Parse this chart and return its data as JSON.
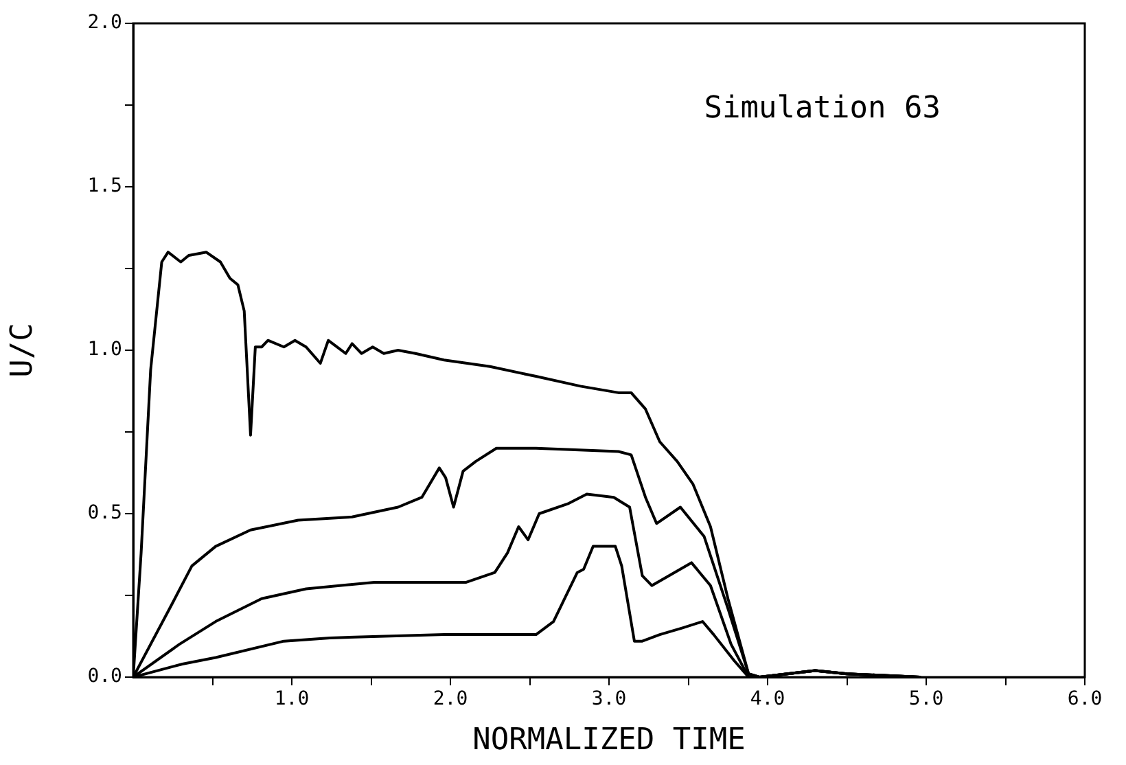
{
  "chart_data": {
    "type": "line",
    "xlabel": "NORMALIZED TIME",
    "ylabel": "U/C",
    "annotations": [
      "Simulation 63"
    ],
    "xlim": [
      0,
      6
    ],
    "ylim": [
      0,
      2
    ],
    "xticks": [
      {
        "value": 0.5,
        "label": null
      },
      {
        "value": 1,
        "label": "1.0"
      },
      {
        "value": 1.5,
        "label": null
      },
      {
        "value": 2,
        "label": "2.0"
      },
      {
        "value": 2.5,
        "label": null
      },
      {
        "value": 3,
        "label": "3.0"
      },
      {
        "value": 3.5,
        "label": null
      },
      {
        "value": 4,
        "label": "4.0"
      },
      {
        "value": 4.5,
        "label": null
      },
      {
        "value": 5,
        "label": "5.0"
      },
      {
        "value": 5.5,
        "label": null
      },
      {
        "value": 6,
        "label": "6.0"
      }
    ],
    "yticks": [
      {
        "value": 0,
        "label": "0.0"
      },
      {
        "value": 0.25,
        "label": null
      },
      {
        "value": 0.5,
        "label": "0.5"
      },
      {
        "value": 0.75,
        "label": null
      },
      {
        "value": 1,
        "label": "1.0"
      },
      {
        "value": 1.25,
        "label": null
      },
      {
        "value": 1.5,
        "label": "1.5"
      },
      {
        "value": 1.75,
        "label": null
      },
      {
        "value": 2,
        "label": "2.0"
      }
    ],
    "grid": false,
    "legend": false,
    "marker": "none",
    "line_style": "solid",
    "series": [
      {
        "color": "#000000",
        "x": [
          0,
          0.05,
          0.11,
          0.18,
          0.22,
          0.3,
          0.35,
          0.46,
          0.55,
          0.61,
          0.66,
          0.7,
          0.74,
          0.77,
          0.81,
          0.85,
          0.95,
          1.02,
          1.09,
          1.18,
          1.23,
          1.34,
          1.38,
          1.44,
          1.51,
          1.58,
          1.67,
          1.78,
          1.96,
          2.25,
          2.54,
          2.82,
          3.06,
          3.14,
          3.23,
          3.32,
          3.43,
          3.53,
          3.64,
          3.75,
          3.88,
          3.95,
          4.3,
          4.5,
          4.96
        ],
        "values": [
          0,
          0.38,
          0.94,
          1.27,
          1.3,
          1.27,
          1.29,
          1.3,
          1.27,
          1.22,
          1.2,
          1.12,
          0.74,
          1.01,
          1.01,
          1.03,
          1.01,
          1.03,
          1.01,
          0.96,
          1.03,
          0.99,
          1.02,
          0.99,
          1.01,
          0.99,
          1.0,
          0.99,
          0.97,
          0.95,
          0.92,
          0.89,
          0.87,
          0.87,
          0.82,
          0.72,
          0.66,
          0.59,
          0.46,
          0.24,
          0.01,
          0,
          0.02,
          0.01,
          0
        ]
      },
      {
        "color": "#000000",
        "x": [
          0,
          0.23,
          0.37,
          0.52,
          0.74,
          1.04,
          1.38,
          1.67,
          1.82,
          1.93,
          1.97,
          2.02,
          2.08,
          2.16,
          2.29,
          2.54,
          3.06,
          3.14,
          3.23,
          3.3,
          3.45,
          3.6,
          3.75,
          3.88,
          3.95,
          4.3,
          4.5,
          4.96
        ],
        "values": [
          0,
          0.21,
          0.34,
          0.4,
          0.45,
          0.48,
          0.49,
          0.52,
          0.55,
          0.64,
          0.61,
          0.52,
          0.63,
          0.66,
          0.7,
          0.7,
          0.69,
          0.68,
          0.55,
          0.47,
          0.52,
          0.43,
          0.21,
          0.01,
          0,
          0.02,
          0.01,
          0
        ]
      },
      {
        "color": "#000000",
        "x": [
          0,
          0.29,
          0.52,
          0.81,
          1.09,
          1.52,
          2.1,
          2.28,
          2.36,
          2.43,
          2.49,
          2.56,
          2.74,
          2.86,
          3.03,
          3.13,
          3.21,
          3.27,
          3.52,
          3.64,
          3.77,
          3.88,
          3.95,
          4.3,
          4.5,
          4.96
        ],
        "values": [
          0,
          0.1,
          0.17,
          0.24,
          0.27,
          0.29,
          0.29,
          0.32,
          0.38,
          0.46,
          0.42,
          0.5,
          0.53,
          0.56,
          0.55,
          0.52,
          0.31,
          0.28,
          0.35,
          0.28,
          0.1,
          0,
          0,
          0.02,
          0.01,
          0
        ]
      },
      {
        "color": "#000000",
        "x": [
          0,
          0.31,
          0.52,
          0.95,
          1.24,
          1.96,
          2.54,
          2.65,
          2.8,
          2.84,
          2.9,
          3.0,
          3.04,
          3.08,
          3.16,
          3.21,
          3.32,
          3.46,
          3.59,
          3.66,
          3.79,
          3.88,
          3.95,
          4.3,
          4.5,
          4.96
        ],
        "values": [
          0,
          0.04,
          0.06,
          0.11,
          0.12,
          0.13,
          0.13,
          0.17,
          0.32,
          0.33,
          0.4,
          0.4,
          0.4,
          0.34,
          0.11,
          0.11,
          0.13,
          0.15,
          0.17,
          0.13,
          0.05,
          0,
          0,
          0.02,
          0.01,
          0
        ]
      }
    ]
  }
}
